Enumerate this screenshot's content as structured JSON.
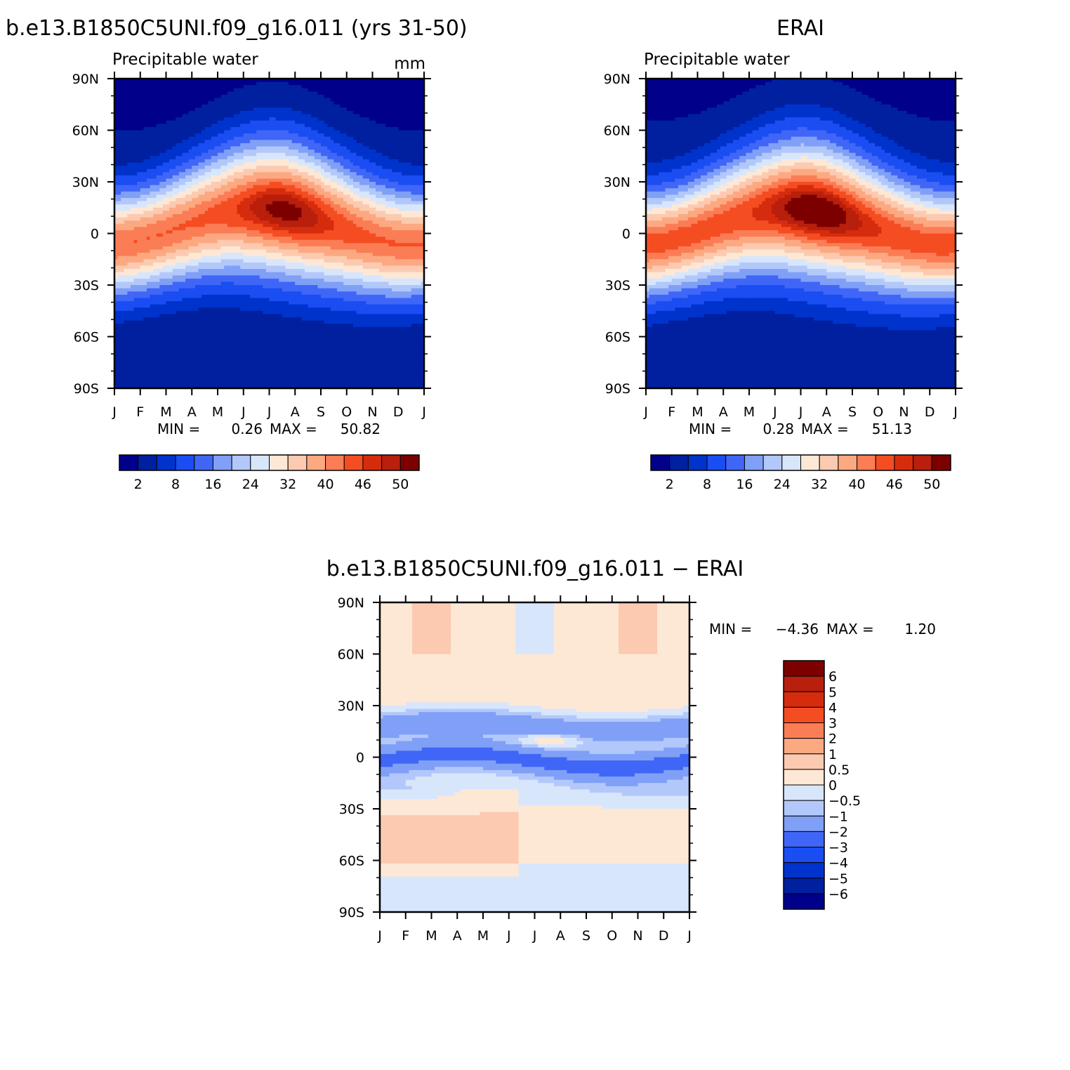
{
  "chart_data": [
    {
      "type": "heatmap",
      "title": "b.e13.B1850C5UNI.f09_g16.011 (yrs 31-50)",
      "subtitle": "Precipitable water",
      "units": "mm",
      "x_ticks": [
        "J",
        "F",
        "M",
        "A",
        "M",
        "J",
        "J",
        "A",
        "S",
        "O",
        "N",
        "D",
        "J"
      ],
      "y_ticks": [
        "90N",
        "60N",
        "30N",
        "0",
        "30S",
        "60S",
        "90S"
      ],
      "y_values": [
        90,
        60,
        30,
        0,
        -30,
        -60,
        -90
      ],
      "min_label": "MIN =",
      "min_value": "0.26",
      "max_label": "MAX =",
      "max_value": "50.82",
      "value_range": [
        0.26,
        50.82
      ],
      "colorbar": {
        "labels": [
          "2",
          "8",
          "16",
          "24",
          "32",
          "40",
          "46",
          "50"
        ],
        "colors": [
          "#00008a",
          "#0020a0",
          "#0033cc",
          "#1a4df2",
          "#4066f7",
          "#80a0f7",
          "#b3c8fa",
          "#d8e6fc",
          "#fde8d6",
          "#fccab0",
          "#fca982",
          "#fb7d55",
          "#f54d22",
          "#d62c0e",
          "#b81f0c",
          "#7d0000"
        ]
      }
    },
    {
      "type": "heatmap",
      "title": "ERAI",
      "subtitle": "Precipitable water",
      "x_ticks": [
        "J",
        "F",
        "M",
        "A",
        "M",
        "J",
        "J",
        "A",
        "S",
        "O",
        "N",
        "D",
        "J"
      ],
      "y_ticks": [
        "90N",
        "60N",
        "30N",
        "0",
        "30S",
        "60S",
        "90S"
      ],
      "y_values": [
        90,
        60,
        30,
        0,
        -30,
        -60,
        -90
      ],
      "min_label": "MIN =",
      "min_value": "0.28",
      "max_label": "MAX =",
      "max_value": "51.13",
      "value_range": [
        0.28,
        51.13
      ],
      "colorbar": {
        "labels": [
          "2",
          "8",
          "16",
          "24",
          "32",
          "40",
          "46",
          "50"
        ],
        "colors": [
          "#00008a",
          "#0020a0",
          "#0033cc",
          "#1a4df2",
          "#4066f7",
          "#80a0f7",
          "#b3c8fa",
          "#d8e6fc",
          "#fde8d6",
          "#fccab0",
          "#fca982",
          "#fb7d55",
          "#f54d22",
          "#d62c0e",
          "#b81f0c",
          "#7d0000"
        ]
      }
    },
    {
      "type": "heatmap",
      "title": "b.e13.B1850C5UNI.f09_g16.011 − ERAI",
      "x_ticks": [
        "J",
        "F",
        "M",
        "A",
        "M",
        "J",
        "J",
        "A",
        "S",
        "O",
        "N",
        "D",
        "J"
      ],
      "y_ticks": [
        "90N",
        "60N",
        "30N",
        "0",
        "30S",
        "60S",
        "90S"
      ],
      "y_values": [
        90,
        60,
        30,
        0,
        -30,
        -60,
        -90
      ],
      "min_label": "MIN =",
      "min_value": "−4.36",
      "max_label": "MAX =",
      "max_value": "1.20",
      "value_range": [
        -4.36,
        1.2
      ],
      "colorbar": {
        "labels": [
          "6",
          "5",
          "4",
          "3",
          "2",
          "1",
          "0.5",
          "0",
          "−0.5",
          "−1",
          "−2",
          "−3",
          "−4",
          "−5",
          "−6"
        ],
        "colors": [
          "#7d0000",
          "#b81f0c",
          "#d62c0e",
          "#f54d22",
          "#fb7d55",
          "#fca982",
          "#fccab0",
          "#fde8d6",
          "#d8e6fc",
          "#b3c8fa",
          "#80a0f7",
          "#4066f7",
          "#1a4df2",
          "#0033cc",
          "#0020a0",
          "#00008a"
        ]
      }
    }
  ]
}
